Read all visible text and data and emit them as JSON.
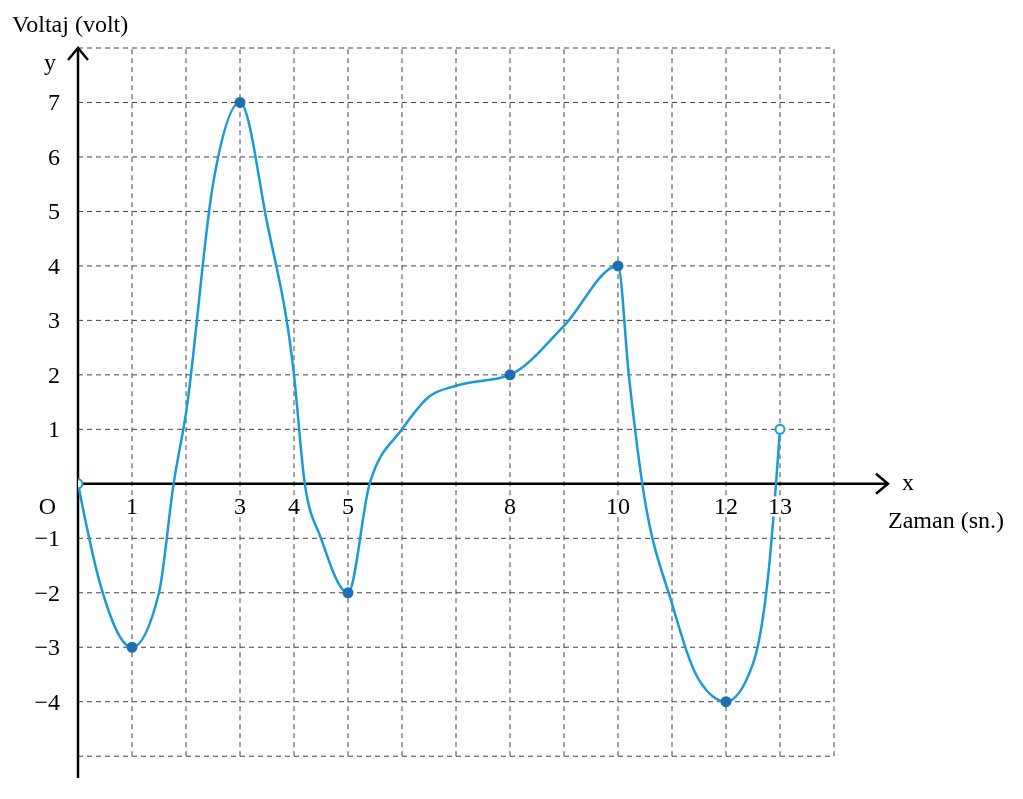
{
  "chart_data": {
    "type": "line",
    "ylabel": "Voltaj (volt)",
    "xlabel": "Zaman (sn.)",
    "annotations": [
      {
        "text": "O",
        "x": 0,
        "y": 0
      },
      "x",
      "y"
    ],
    "xlim": [
      0,
      15
    ],
    "ylim": [
      -5.4,
      8
    ],
    "xticks": [
      {
        "value": 0,
        "label": null
      },
      1,
      {
        "value": 2,
        "label": null
      },
      3,
      4,
      5,
      {
        "value": 6,
        "label": null
      },
      {
        "value": 7,
        "label": null
      },
      8,
      {
        "value": 9,
        "label": null
      },
      10,
      {
        "value": 11,
        "label": null
      },
      12,
      13,
      {
        "value": 14,
        "label": null
      }
    ],
    "yticks": [
      {
        "value": -5,
        "label": null
      },
      {
        "value": -4,
        "label": "−4"
      },
      {
        "value": -3,
        "label": "−3"
      },
      {
        "value": -2,
        "label": "−2"
      },
      {
        "value": -1,
        "label": "−1"
      },
      {
        "value": 0,
        "label": null
      },
      1,
      2,
      3,
      4,
      5,
      6,
      7,
      {
        "value": 8,
        "label": null
      }
    ],
    "grid": true,
    "marker": "circle",
    "series": [
      {
        "marker": "none",
        "color": "#1a9bd7",
        "x": [
          0,
          0.4,
          1,
          1.5,
          1.77,
          2,
          2.5,
          3,
          3.5,
          4,
          4.2,
          4.5,
          5,
          5.4,
          6,
          6.5,
          7,
          8,
          9,
          10,
          10.2,
          10.45,
          11,
          11.5,
          12,
          12.5,
          12.8,
          13
        ],
        "values": [
          0,
          -1.8,
          -3,
          -2,
          0,
          1.3,
          5.5,
          7,
          4.8,
          2,
          0,
          -1,
          -2,
          0,
          1,
          1.6,
          1.8,
          2,
          2.9,
          4,
          2,
          0,
          -2.2,
          -3.6,
          -4,
          -3.3,
          -1.5,
          1
        ]
      },
      {
        "type": "scatter",
        "color": "#1f6fb0",
        "x": [
          1,
          3,
          5,
          8,
          10,
          12
        ],
        "values": [
          -3,
          7,
          -2,
          2,
          4,
          -4
        ]
      },
      {
        "type": "scatter",
        "color": "#1a9bd7",
        "x": [
          0,
          13
        ],
        "values": [
          0,
          1
        ]
      }
    ]
  }
}
